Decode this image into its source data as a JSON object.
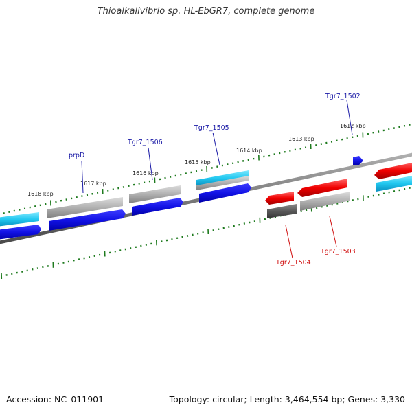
{
  "title": "Thioalkalivibrio sp. HL-EbGR7, complete genome",
  "footer": {
    "accession": "Accession: NC_011901",
    "stats": "Topology: circular; Length: 3,464,554 bp; Genes: 3,330"
  },
  "ruler": {
    "outer_labels": [
      "1618 kbp",
      "1617 kbp",
      "1616 kbp",
      "1615 kbp",
      "1614 kbp",
      "1613 kbp",
      "1612 kbp"
    ]
  },
  "genes": {
    "forward_labels": [
      "prpD",
      "Tgr7_1506",
      "Tgr7_1505",
      "Tgr7_1502"
    ],
    "reverse_labels": [
      "Tgr7_1504",
      "Tgr7_1503"
    ]
  },
  "colors": {
    "forward_label": "#1a1aa6",
    "reverse_label": "#d01010",
    "tick": "#1e7a1e",
    "backbone": "#7a7a7a",
    "blue": "#1010e0",
    "cyan": "#22c8f0",
    "gray": "#a8a8a8",
    "darkgray": "#5a5a5a",
    "red": "#f00000"
  }
}
